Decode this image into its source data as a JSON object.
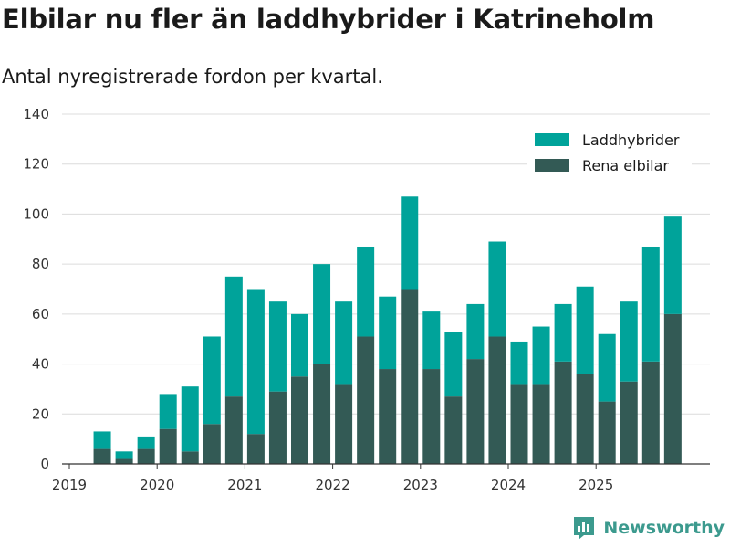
{
  "chart_data": {
    "type": "bar",
    "stacked": true,
    "title": "Elbilar nu fler än laddhybrider i Katrineholm",
    "subtitle": "Antal nyregistrerade fordon per kvartal.",
    "xlabel": "",
    "ylabel": "",
    "ylim": [
      0,
      140
    ],
    "yticks": [
      0,
      20,
      40,
      60,
      80,
      100,
      120,
      140
    ],
    "xticks": [
      {
        "label": "2019",
        "index": 0
      },
      {
        "label": "2020",
        "index": 4
      },
      {
        "label": "2021",
        "index": 8
      },
      {
        "label": "2022",
        "index": 12
      },
      {
        "label": "2023",
        "index": 16
      },
      {
        "label": "2024",
        "index": 20
      },
      {
        "label": "2025",
        "index": 24
      }
    ],
    "categories": [
      "2019 Q1",
      "2019 Q2",
      "2019 Q3",
      "2019 Q4",
      "2020 Q1",
      "2020 Q2",
      "2020 Q3",
      "2020 Q4",
      "2021 Q1",
      "2021 Q2",
      "2021 Q3",
      "2021 Q4",
      "2022 Q1",
      "2022 Q2",
      "2022 Q3",
      "2022 Q4",
      "2023 Q1",
      "2023 Q2",
      "2023 Q3",
      "2023 Q4",
      "2024 Q1",
      "2024 Q2",
      "2024 Q3",
      "2024 Q4",
      "2025 Q1",
      "2025 Q2",
      "2025 Q3",
      "2025 Q4"
    ],
    "series": [
      {
        "name": "Rena elbilar",
        "color": "#335a55",
        "values": [
          0,
          6,
          2,
          6,
          14,
          5,
          16,
          27,
          12,
          29,
          35,
          40,
          32,
          51,
          38,
          70,
          38,
          27,
          42,
          51,
          32,
          32,
          41,
          36,
          25,
          33,
          41,
          60
        ]
      },
      {
        "name": "Laddhybrider",
        "color": "#00a39a",
        "values": [
          0,
          7,
          3,
          5,
          14,
          26,
          35,
          48,
          58,
          36,
          25,
          40,
          33,
          36,
          29,
          37,
          23,
          26,
          22,
          38,
          17,
          23,
          23,
          35,
          27,
          32,
          46,
          39
        ]
      }
    ],
    "legend": {
      "position": "top-right",
      "items": [
        {
          "label": "Laddhybrider",
          "color": "#00a39a"
        },
        {
          "label": "Rena elbilar",
          "color": "#335a55"
        }
      ]
    },
    "grid": true
  },
  "brand": {
    "name": "Newsworthy",
    "icon": "newsworthy-logo-icon",
    "color": "#3c9a8e"
  }
}
